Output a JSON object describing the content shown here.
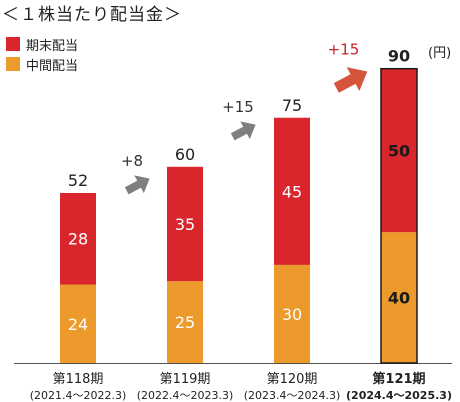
{
  "title": "＜１株当たり配当金＞",
  "unit": "(円)",
  "chart_data": {
    "type": "bar",
    "stacked": true,
    "categories": [
      "第118期",
      "第119期",
      "第120期",
      "第121期"
    ],
    "periods": [
      "(2021.4～2022.3)",
      "(2022.4～2023.3)",
      "(2023.4～2024.3)",
      "(2024.4～2025.3)"
    ],
    "highlight_index": 3,
    "series": [
      {
        "name": "中間配当",
        "values": [
          24,
          25,
          30,
          40
        ],
        "color": "#eb9a2b"
      },
      {
        "name": "期末配当",
        "values": [
          28,
          35,
          45,
          50
        ],
        "color": "#d9262c"
      }
    ],
    "totals": [
      52,
      60,
      75,
      90
    ],
    "increments": [
      "+8",
      "+15",
      "+15"
    ],
    "increment_colors": [
      "#7f7f7f",
      "#7f7f7f",
      "#d4553a"
    ],
    "legend_position": "top-left",
    "ylim": [
      0,
      100
    ],
    "grid": false
  }
}
